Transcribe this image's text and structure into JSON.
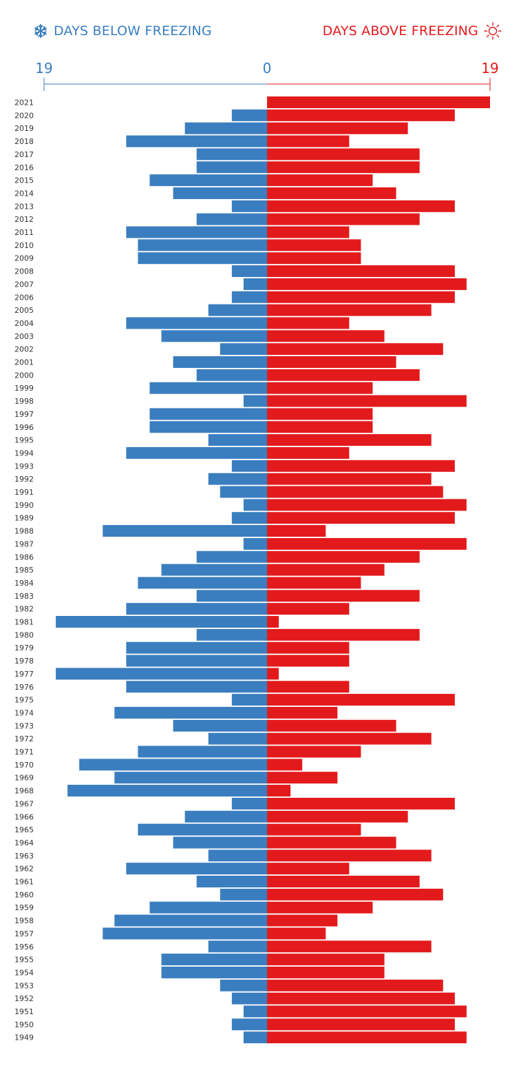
{
  "legend": {
    "below_label": "DAYS BELOW FREEZING",
    "below_icon": "snowflake-icon",
    "above_label": "DAYS ABOVE FREEZING",
    "above_icon": "sun-icon"
  },
  "colors": {
    "below": "#3a7ebf",
    "above": "#e31a1c",
    "axis_text_below": "#3a7ebf",
    "axis_text_above": "#e31a1c"
  },
  "chart_data": {
    "type": "bar",
    "orientation": "horizontal-diverging",
    "axis_ticks": {
      "below_max": "19",
      "zero": "0",
      "above_max": "19"
    },
    "xlim": [
      -19,
      19
    ],
    "years": [
      "2021",
      "2020",
      "2019",
      "2018",
      "2017",
      "2016",
      "2015",
      "2014",
      "2013",
      "2012",
      "2011",
      "2010",
      "2009",
      "2008",
      "2007",
      "2006",
      "2005",
      "2004",
      "2003",
      "2002",
      "2001",
      "2000",
      "1999",
      "1998",
      "1997",
      "1996",
      "1995",
      "1994",
      "1993",
      "1992",
      "1991",
      "1990",
      "1989",
      "1988",
      "1987",
      "1986",
      "1985",
      "1984",
      "1983",
      "1982",
      "1981",
      "1980",
      "1979",
      "1978",
      "1977",
      "1976",
      "1975",
      "1974",
      "1973",
      "1972",
      "1971",
      "1970",
      "1969",
      "1968",
      "1967",
      "1966",
      "1965",
      "1964",
      "1963",
      "1962",
      "1961",
      "1960",
      "1959",
      "1958",
      "1957",
      "1956",
      "1955",
      "1954",
      "1953",
      "1952",
      "1951",
      "1950",
      "1949"
    ],
    "series": [
      {
        "name": "DAYS BELOW FREEZING",
        "values": [
          0,
          3,
          7,
          12,
          6,
          6,
          10,
          8,
          3,
          6,
          12,
          11,
          11,
          3,
          2,
          3,
          5,
          12,
          9,
          4,
          8,
          6,
          10,
          2,
          10,
          10,
          5,
          12,
          3,
          5,
          4,
          2,
          3,
          14,
          2,
          6,
          9,
          11,
          6,
          12,
          18,
          6,
          12,
          12,
          18,
          12,
          3,
          13,
          8,
          5,
          11,
          16,
          13,
          17,
          3,
          7,
          11,
          8,
          5,
          12,
          6,
          4,
          10,
          13,
          14,
          5,
          9,
          9,
          4,
          3,
          2,
          3,
          2
        ]
      },
      {
        "name": "DAYS ABOVE FREEZING",
        "values": [
          19,
          16,
          12,
          7,
          13,
          13,
          9,
          11,
          16,
          13,
          7,
          8,
          8,
          16,
          17,
          16,
          14,
          7,
          10,
          15,
          11,
          13,
          9,
          17,
          9,
          9,
          14,
          7,
          16,
          14,
          15,
          17,
          16,
          5,
          17,
          13,
          10,
          8,
          13,
          7,
          1,
          13,
          7,
          7,
          1,
          7,
          16,
          6,
          11,
          14,
          8,
          3,
          6,
          2,
          16,
          12,
          8,
          11,
          14,
          7,
          13,
          15,
          9,
          6,
          5,
          14,
          10,
          10,
          15,
          16,
          17,
          16,
          17
        ]
      }
    ]
  }
}
